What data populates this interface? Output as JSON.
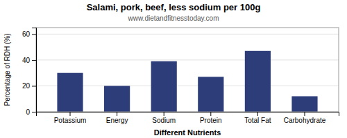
{
  "chart_data": {
    "type": "bar",
    "title": "Salami, pork, beef, less sodium per 100g",
    "subtitle": "www.dietandfitnesstoday.com",
    "xlabel": "Different Nutrients",
    "ylabel": "Percentage of RDH (%)",
    "categories": [
      "Potassium",
      "Energy",
      "Sodium",
      "Protein",
      "Total Fat",
      "Carbohydrate"
    ],
    "values": [
      30,
      20,
      39,
      27,
      47,
      12
    ],
    "color": "#2d3d7a",
    "ylim": [
      0,
      65
    ],
    "yticks": [
      0,
      20,
      40,
      60
    ],
    "grid": true
  }
}
